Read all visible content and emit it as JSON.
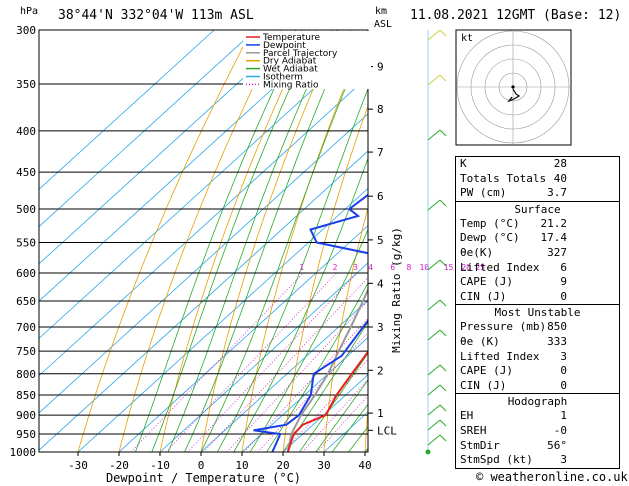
{
  "header": {
    "location": "38°44'N 332°04'W 113m ASL",
    "datetime": "11.08.2021 12GMT (Base: 12)",
    "hpa": "hPa",
    "km_top": "km",
    "km_asl": "ASL"
  },
  "chart_data": {
    "type": "skew-t",
    "xlabel": "Dewpoint / Temperature (°C)",
    "ylabel_right": "Mixing Ratio (g/kg)",
    "xlim": [
      -35,
      40
    ],
    "x_ticks": [
      -30,
      -20,
      -10,
      0,
      10,
      20,
      30,
      40
    ],
    "pressure_levels": [
      300,
      350,
      400,
      450,
      500,
      550,
      600,
      650,
      700,
      750,
      800,
      850,
      900,
      950,
      1000
    ],
    "altitude_km": [
      {
        "km": "9",
        "p": 333
      },
      {
        "km": "8",
        "p": 376
      },
      {
        "km": "7",
        "p": 425
      },
      {
        "km": "6",
        "p": 482
      },
      {
        "km": "5",
        "p": 546
      },
      {
        "km": "4",
        "p": 618
      },
      {
        "km": "3",
        "p": 700
      },
      {
        "km": "2",
        "p": 792
      },
      {
        "km": "1",
        "p": 895
      },
      {
        "km": "LCL",
        "p": 940
      }
    ],
    "mixing_ratio_labels": [
      "1",
      "2",
      "3",
      "4",
      "6",
      "8",
      "10",
      "15",
      "20",
      "25"
    ],
    "legend": [
      {
        "name": "Temperature",
        "color": "#e8201a"
      },
      {
        "name": "Dewpoint",
        "color": "#1a3ee8"
      },
      {
        "name": "Parcel Trajectory",
        "color": "#999999"
      },
      {
        "name": "Dry Adiabat",
        "color": "#e8a000"
      },
      {
        "name": "Wet Adiabat",
        "color": "#2aaa2a"
      },
      {
        "name": "Isotherm",
        "color": "#2aa8e8"
      },
      {
        "name": "Mixing Ratio",
        "color": "#d020c8"
      }
    ],
    "temperature": [
      [
        1000,
        21.2
      ],
      [
        975,
        19.5
      ],
      [
        950,
        17.8
      ],
      [
        925,
        17.5
      ],
      [
        900,
        20.5
      ],
      [
        850,
        17.8
      ],
      [
        800,
        15.8
      ],
      [
        750,
        13.8
      ],
      [
        700,
        9.5
      ],
      [
        650,
        5.5
      ],
      [
        600,
        1.5
      ],
      [
        550,
        -3
      ],
      [
        500,
        -8.5
      ],
      [
        450,
        -15
      ],
      [
        400,
        -22
      ],
      [
        350,
        -29.5
      ],
      [
        300,
        -39
      ]
    ],
    "dewpoint": [
      [
        1000,
        17.4
      ],
      [
        975,
        16
      ],
      [
        950,
        14.5
      ],
      [
        940,
        7
      ],
      [
        925,
        13.5
      ],
      [
        900,
        14
      ],
      [
        850,
        11.5
      ],
      [
        800,
        6.5
      ],
      [
        760,
        8.5
      ],
      [
        700,
        6
      ],
      [
        650,
        4
      ],
      [
        600,
        -4
      ],
      [
        570,
        -10
      ],
      [
        550,
        -28
      ],
      [
        530,
        -33
      ],
      [
        510,
        -25
      ],
      [
        500,
        -29
      ],
      [
        450,
        -27
      ],
      [
        400,
        -30
      ],
      [
        390,
        -45
      ],
      [
        350,
        -38
      ],
      [
        300,
        -55
      ]
    ],
    "parcel": [
      [
        1000,
        21.2
      ],
      [
        950,
        17.2
      ],
      [
        900,
        14.5
      ],
      [
        850,
        12.5
      ],
      [
        800,
        10
      ],
      [
        750,
        6.5
      ],
      [
        700,
        3
      ],
      [
        650,
        -1
      ],
      [
        600,
        -5.5
      ],
      [
        550,
        -10.5
      ],
      [
        500,
        -16
      ],
      [
        450,
        -22
      ],
      [
        400,
        -29
      ],
      [
        350,
        -37
      ],
      [
        300,
        -46
      ]
    ]
  },
  "hodograph": {
    "label": "kt",
    "rings": [
      "10",
      "20",
      "30",
      "40"
    ]
  },
  "indices": {
    "top": [
      {
        "label": "K",
        "value": "28"
      },
      {
        "label": "Totals Totals",
        "value": "40"
      },
      {
        "label": "PW (cm)",
        "value": "3.7"
      }
    ],
    "surface": {
      "title": "Surface",
      "rows": [
        {
          "label": "Temp (°C)",
          "value": "21.2"
        },
        {
          "label": "Dewp (°C)",
          "value": "17.4"
        },
        {
          "label": "θe(K)",
          "value": "327"
        },
        {
          "label": "Lifted Index",
          "value": "6"
        },
        {
          "label": "CAPE (J)",
          "value": "9"
        },
        {
          "label": "CIN (J)",
          "value": "0"
        }
      ]
    },
    "most_unstable": {
      "title": "Most Unstable",
      "rows": [
        {
          "label": "Pressure (mb)",
          "value": "850"
        },
        {
          "label": "θe (K)",
          "value": "333"
        },
        {
          "label": "Lifted Index",
          "value": "3"
        },
        {
          "label": "CAPE (J)",
          "value": "0"
        },
        {
          "label": "CIN (J)",
          "value": "0"
        }
      ]
    },
    "hodograph_params": {
      "title": "Hodograph",
      "rows": [
        {
          "label": "EH",
          "value": "1"
        },
        {
          "label": "SREH",
          "value": "-0"
        },
        {
          "label": "StmDir",
          "value": "56°"
        },
        {
          "label": "StmSpd (kt)",
          "value": "3"
        }
      ]
    }
  },
  "credit": "© weatheronline.co.uk"
}
